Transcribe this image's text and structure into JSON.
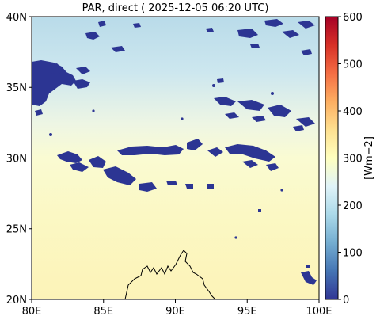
{
  "title": "PAR, direct ( 2025-12-05 06:20 UTC)",
  "map": {
    "x_ticks": [
      "80E",
      "85E",
      "90E",
      "95E",
      "100E"
    ],
    "y_ticks": [
      "20N",
      "25N",
      "30N",
      "35N",
      "40N"
    ],
    "lon_range": [
      80,
      100
    ],
    "lat_range": [
      20,
      40
    ]
  },
  "colorbar": {
    "label": "[Wm−2]",
    "ticks": [
      "0",
      "100",
      "200",
      "300",
      "400",
      "500",
      "600"
    ],
    "range": [
      0,
      600
    ],
    "colormap": "RdYlBu_r",
    "colors": [
      "#313695",
      "#4575b4",
      "#74add1",
      "#abd9e9",
      "#e0f3f8",
      "#ffffbf",
      "#fee090",
      "#fdae61",
      "#f46d43",
      "#d73027",
      "#a50026"
    ]
  },
  "cloud_color": "#2c3593"
}
